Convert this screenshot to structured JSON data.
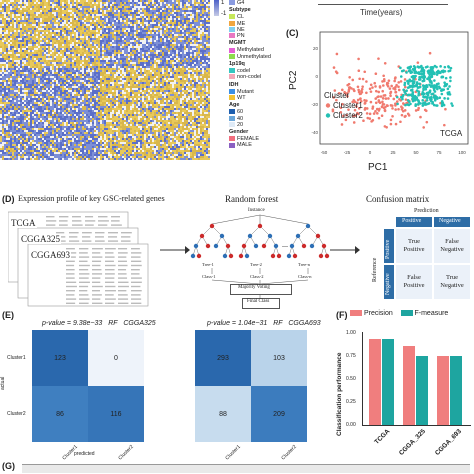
{
  "heatmap": {
    "colorbar_labels": [
      "1",
      "-1"
    ],
    "legend": {
      "top_item": "G4",
      "groups": [
        {
          "title": "Subtype",
          "items": [
            {
              "label": "CL",
              "color": "#c7e85a"
            },
            {
              "label": "ME",
              "color": "#f0a640"
            },
            {
              "label": "NE",
              "color": "#7fd0f0"
            },
            {
              "label": "PN",
              "color": "#e979c3"
            }
          ]
        },
        {
          "title": "MGMT",
          "items": [
            {
              "label": "Methylated",
              "color": "#e55fd6"
            },
            {
              "label": "Unmethylated",
              "color": "#8ddc4e"
            }
          ]
        },
        {
          "title": "1p19q",
          "items": [
            {
              "label": "codel",
              "color": "#35c6c0"
            },
            {
              "label": "non-codel",
              "color": "#f4a7b7"
            }
          ]
        },
        {
          "title": "IDH",
          "items": [
            {
              "label": "Mutant",
              "color": "#3b8fe3"
            },
            {
              "label": "WT",
              "color": "#f2c233"
            }
          ]
        },
        {
          "title": "Age",
          "items": [
            {
              "label": "60",
              "color": "#1f5fae"
            },
            {
              "label": "40",
              "color": "#6aa6d9"
            },
            {
              "label": "20",
              "color": "#dfeaf6"
            }
          ]
        },
        {
          "title": "Gender",
          "items": [
            {
              "label": "FEMALE",
              "color": "#f26d7d"
            },
            {
              "label": "MALE",
              "color": "#8a60c2"
            }
          ]
        }
      ]
    }
  },
  "panel_b_bottom": {
    "xlabel": "Time(years)"
  },
  "panel_c": {
    "letter": "(C)",
    "xlabel": "PC1",
    "ylabel": "PC2",
    "annotation": "TCGA",
    "legend_title": "Cluster",
    "legend_items": [
      {
        "label": "Cluster1",
        "color": "#f07a6e"
      },
      {
        "label": "Cluster2",
        "color": "#22c0b4"
      }
    ],
    "x_ticks": [
      "-50",
      "-25",
      "0",
      "25",
      "50",
      "75",
      "100"
    ],
    "y_ticks": [
      "20",
      "0",
      "-20",
      "-40"
    ]
  },
  "panel_d": {
    "letter": "(D)",
    "title_left": "Expression profile of key GSC-related genes",
    "datasets": [
      "TCGA",
      "CGGA325",
      "CGGA693"
    ],
    "title_mid": "Random forest",
    "instance": "Instance",
    "trees": [
      "Tree-1",
      "Tree-2",
      "Tree-n"
    ],
    "classes": [
      "Class-1",
      "Class-2",
      "Class-n"
    ],
    "voting": "Majority Voting",
    "final": "Final Class",
    "dots": "...",
    "title_right": "Confusion matrix",
    "prediction": "Prediction",
    "reference": "Reference",
    "col_labels": [
      "Positive",
      "Negative"
    ],
    "row_labels": [
      "Positive",
      "Negative"
    ],
    "cells": [
      [
        "True Positive",
        "False Negative"
      ],
      [
        "False Positive",
        "True Negative"
      ]
    ]
  },
  "panel_e": {
    "letter": "(E)",
    "matrices": [
      {
        "pvalue_prefix": "p-value = ",
        "pvalue": "9.38e−33",
        "method": "RF",
        "dataset": "CGGA325",
        "values": [
          [
            123,
            0
          ],
          [
            86,
            116
          ]
        ],
        "colors": [
          [
            "#2a68ad",
            "#eef3fa"
          ],
          [
            "#3f7fc0",
            "#3675b8"
          ]
        ]
      },
      {
        "pvalue_prefix": "p-value = ",
        "pvalue": "1.04e−31",
        "method": "RF",
        "dataset": "CGGA693",
        "values": [
          [
            293,
            103
          ],
          [
            88,
            209
          ]
        ],
        "colors": [
          [
            "#2a68ad",
            "#b9d3ea"
          ],
          [
            "#c7dcee",
            "#3c7cbe"
          ]
        ]
      }
    ],
    "ylabel": "actual",
    "xlabel": "predicted",
    "row_labels": [
      "Cluster1",
      "Cluster2"
    ],
    "col_labels": [
      "Cluster1",
      "Cluster2"
    ]
  },
  "chart_data": {
    "type": "bar",
    "letter": "(F)",
    "categories": [
      "TCGA",
      "CGGA_325",
      "CGGA_693"
    ],
    "series": [
      {
        "name": "Precision",
        "color": "#f07e7e",
        "values": [
          0.93,
          0.85,
          0.74
        ]
      },
      {
        "name": "F-measure",
        "color": "#1ea5a0",
        "values": [
          0.93,
          0.74,
          0.74
        ]
      }
    ],
    "ylabel": "Classification performance",
    "yticks": [
      "0.00",
      "0.25",
      "0.50",
      "0.75",
      "1.00"
    ],
    "ylim": [
      0,
      1.0
    ]
  },
  "panel_g": {
    "letter": "(G)"
  }
}
